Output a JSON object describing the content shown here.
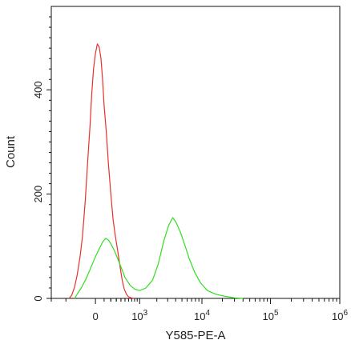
{
  "chart_data": {
    "type": "line",
    "xlabel": "Y585-PE-A",
    "ylabel": "Count",
    "x_scale": "biexponential",
    "xlim": [
      -1000,
      1000000
    ],
    "ylim": [
      0,
      560
    ],
    "y_ticks": [
      {
        "value": 0,
        "label": "0"
      },
      {
        "value": 200,
        "label": "200"
      },
      {
        "value": 400,
        "label": "400"
      }
    ],
    "x_ticks": [
      {
        "value": 0,
        "label": "0"
      },
      {
        "value": 1000,
        "label": "10",
        "exp": "3"
      },
      {
        "value": 10000,
        "label": "10",
        "exp": "4"
      },
      {
        "value": 100000,
        "label": "10",
        "exp": "5"
      },
      {
        "value": 1000000,
        "label": "10",
        "exp": "6"
      }
    ],
    "grid": false,
    "series": [
      {
        "color": "#e8312a",
        "points": [
          [
            -420,
            0
          ],
          [
            -360,
            6
          ],
          [
            -300,
            22
          ],
          [
            -250,
            45
          ],
          [
            -200,
            80
          ],
          [
            -160,
            120
          ],
          [
            -120,
            190
          ],
          [
            -90,
            260
          ],
          [
            -60,
            330
          ],
          [
            -40,
            390
          ],
          [
            -20,
            440
          ],
          [
            0,
            470
          ],
          [
            20,
            488
          ],
          [
            40,
            482
          ],
          [
            60,
            460
          ],
          [
            80,
            420
          ],
          [
            100,
            370
          ],
          [
            130,
            320
          ],
          [
            160,
            260
          ],
          [
            200,
            200
          ],
          [
            240,
            150
          ],
          [
            280,
            120
          ],
          [
            330,
            90
          ],
          [
            380,
            60
          ],
          [
            430,
            35
          ],
          [
            480,
            18
          ],
          [
            540,
            8
          ],
          [
            600,
            3
          ],
          [
            680,
            1
          ],
          [
            780,
            0
          ]
        ]
      },
      {
        "color": "#33dd22",
        "points": [
          [
            -300,
            0
          ],
          [
            -240,
            10
          ],
          [
            -180,
            20
          ],
          [
            -120,
            35
          ],
          [
            -60,
            55
          ],
          [
            0,
            80
          ],
          [
            40,
            95
          ],
          [
            80,
            108
          ],
          [
            120,
            115
          ],
          [
            160,
            112
          ],
          [
            200,
            105
          ],
          [
            260,
            92
          ],
          [
            320,
            78
          ],
          [
            400,
            60
          ],
          [
            500,
            40
          ],
          [
            650,
            25
          ],
          [
            800,
            18
          ],
          [
            1000,
            15
          ],
          [
            1300,
            20
          ],
          [
            1700,
            35
          ],
          [
            2100,
            65
          ],
          [
            2600,
            110
          ],
          [
            3100,
            140
          ],
          [
            3600,
            155
          ],
          [
            4100,
            145
          ],
          [
            4800,
            125
          ],
          [
            5600,
            100
          ],
          [
            6500,
            75
          ],
          [
            7800,
            50
          ],
          [
            9500,
            30
          ],
          [
            12000,
            15
          ],
          [
            16000,
            8
          ],
          [
            22000,
            4
          ],
          [
            30000,
            1
          ],
          [
            40000,
            0
          ]
        ]
      }
    ]
  }
}
